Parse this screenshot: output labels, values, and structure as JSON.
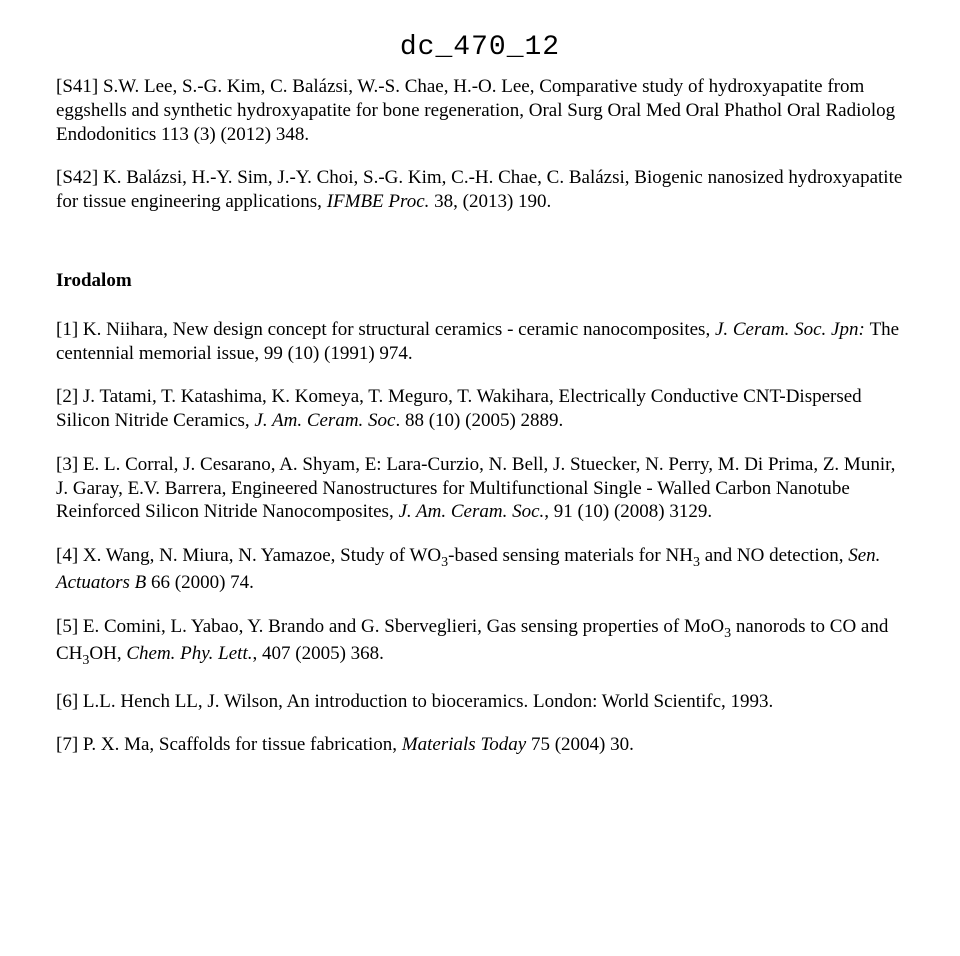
{
  "header": "dc_470_12",
  "s_refs": [
    {
      "label": "[S41]",
      "plain": " S.W. Lee, S.-G. Kim, C. Balázsi, W.-S. Chae, H.-O. Lee, Comparative study of hydroxyapatite from eggshells and synthetic hydroxyapatite for bone regeneration, Oral Surg Oral Med Oral Phathol Oral Radiolog Endodonitics 113 (3) (2012) 348."
    },
    {
      "label": "[S42]",
      "plain_before_italic": " K. Balázsi, H.-Y. Sim, J.-Y. Choi, S.-G. Kim, C.-H. Chae, C. Balázsi, Biogenic nanosized hydroxyapatite for tissue engineering applications,",
      "italic": " IFMBE Proc. ",
      "plain_after_italic": "38, (2013) 190."
    }
  ],
  "section_title": "Irodalom",
  "refs": [
    {
      "label": "[1]",
      "segments": [
        {
          "t": "plain",
          "v": " K. Niihara, New design concept for structural ceramics - ceramic nanocomposites, "
        },
        {
          "t": "italic",
          "v": "J. Ceram. Soc. Jpn: "
        },
        {
          "t": "plain",
          "v": "The centennial memorial issue, 99 (10) (1991) 974."
        }
      ]
    },
    {
      "label": "[2]",
      "segments": [
        {
          "t": "plain",
          "v": " J. Tatami, T. Katashima, K. Komeya, T. Meguro, T. Wakihara, Electrically Conductive CNT-Dispersed Silicon Nitride Ceramics, "
        },
        {
          "t": "italic",
          "v": "J. Am. Ceram. Soc"
        },
        {
          "t": "plain",
          "v": ". 88 (10) (2005) 2889."
        }
      ]
    },
    {
      "label": "[3]",
      "segments": [
        {
          "t": "plain",
          "v": " E. L. Corral, J. Cesarano, A. Shyam, E: Lara-Curzio, N. Bell, J. Stuecker, N. Perry, M. Di Prima, Z. Munir, J. Garay, E.V. Barrera, Engineered Nanostructures for Multifunctional Single - Walled Carbon Nanotube Reinforced Silicon Nitride Nanocomposites, "
        },
        {
          "t": "italic",
          "v": "J. Am. Ceram. Soc."
        },
        {
          "t": "plain",
          "v": ", 91 (10) (2008) 3129."
        }
      ]
    },
    {
      "label": "[4]",
      "segments": [
        {
          "t": "plain",
          "v": " X. Wang, N. Miura, N. Yamazoe, Study of WO"
        },
        {
          "t": "sub",
          "v": "3"
        },
        {
          "t": "plain",
          "v": "-based sensing materials for NH"
        },
        {
          "t": "sub",
          "v": "3"
        },
        {
          "t": "plain",
          "v": " and NO detection, "
        },
        {
          "t": "italic",
          "v": "Sen. Actuators B "
        },
        {
          "t": "plain",
          "v": "66 (2000) 74."
        }
      ]
    },
    {
      "label": "[5]",
      "segments": [
        {
          "t": "plain",
          "v": " E. Comini, L. Yabao, Y. Brando and G. Sberveglieri, Gas sensing properties of MoO"
        },
        {
          "t": "sub",
          "v": "3"
        },
        {
          "t": "plain",
          "v": " nanorods to CO and CH"
        },
        {
          "t": "sub",
          "v": "3"
        },
        {
          "t": "plain",
          "v": "OH, "
        },
        {
          "t": "italic",
          "v": "Chem. Phy. Lett."
        },
        {
          "t": "plain",
          "v": ", 407 (2005) 368."
        }
      ]
    },
    {
      "label": "[6]",
      "segments": [
        {
          "t": "plain",
          "v": " L.L. Hench LL, J. Wilson, An introduction to bioceramics. London: World Scientifc, 1993."
        }
      ]
    },
    {
      "label": "[7]",
      "segments": [
        {
          "t": "plain",
          "v": " P. X. Ma, Scaffolds for tissue fabrication, "
        },
        {
          "t": "italic",
          "v": "Materials Today "
        },
        {
          "t": "plain",
          "v": "75 (2004) 30."
        }
      ]
    }
  ]
}
